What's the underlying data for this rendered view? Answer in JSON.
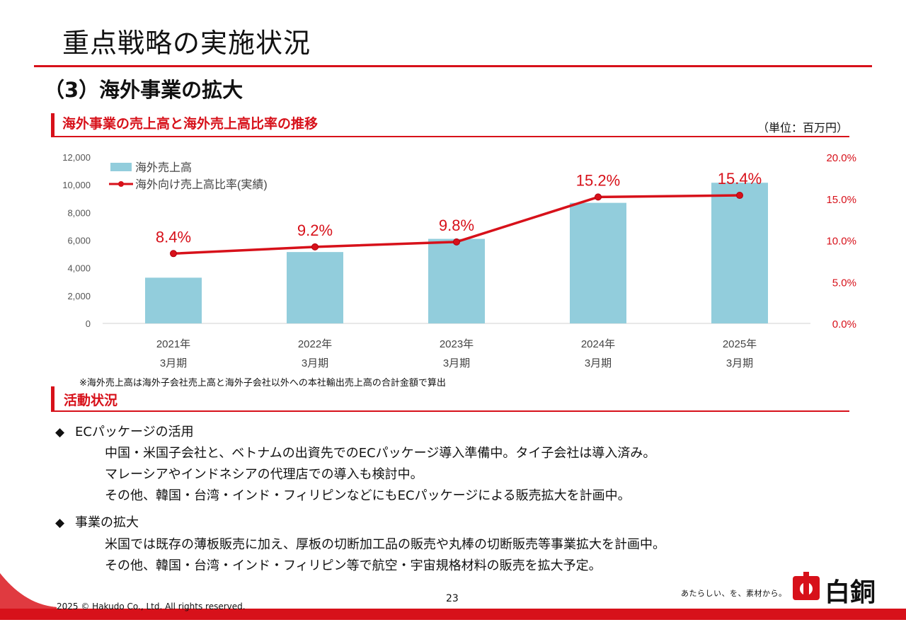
{
  "header": {
    "title": "重点戦略の実施状況",
    "section": "（3）海外事業の拡大"
  },
  "chart_section": {
    "title": "海外事業の売上高と海外売上高比率の推移",
    "unit": "（単位：百万円）",
    "footnote": "※海外売上高は海外子会社売上高と海外子会社以外への本社輸出売上高の合計金額で算出"
  },
  "chart_data": {
    "type": "bar",
    "categories": [
      {
        "year": "2021年",
        "period": "3月期"
      },
      {
        "year": "2022年",
        "period": "3月期"
      },
      {
        "year": "2023年",
        "period": "3月期"
      },
      {
        "year": "2024年",
        "period": "3月期"
      },
      {
        "year": "2025年",
        "period": "3月期"
      }
    ],
    "series": [
      {
        "name": "海外売上高",
        "type": "bar",
        "axis": "left",
        "values": [
          3300,
          5150,
          6100,
          8700,
          10150
        ],
        "color": "#92cddc"
      },
      {
        "name": "海外向け売上高比率(実績)",
        "type": "line",
        "axis": "right",
        "values": [
          8.4,
          9.2,
          9.8,
          15.2,
          15.4
        ],
        "labels": [
          "8.4%",
          "9.2%",
          "9.8%",
          "15.2%",
          "15.4%"
        ],
        "color": "#d7111a"
      }
    ],
    "y_left": {
      "min": 0,
      "max": 12000,
      "ticks": [
        "0",
        "2,000",
        "4,000",
        "6,000",
        "8,000",
        "10,000",
        "12,000"
      ]
    },
    "y_right": {
      "min": 0,
      "max": 20,
      "ticks": [
        "0.0%",
        "5.0%",
        "10.0%",
        "15.0%",
        "20.0%"
      ]
    },
    "legend": "top-left",
    "grid": false
  },
  "activity": {
    "title": "活動状況",
    "items": [
      {
        "heading": "ECパッケージの活用",
        "lines": [
          "中国・米国子会社と、ベトナムの出資先でのECパッケージ導入準備中。タイ子会社は導入済み。",
          "マレーシアやインドネシアの代理店での導入も検討中。",
          "その他、韓国・台湾・インド・フィリピンなどにもECパッケージによる販売拡大を計画中。"
        ]
      },
      {
        "heading": "事業の拡大",
        "lines": [
          "米国では既存の薄板販売に加え、厚板の切断加工品の販売や丸棒の切断販売等事業拡大を計画中。",
          "その他、韓国・台湾・インド・フィリピン等で航空・宇宙規格材料の販売を拡大予定。"
        ]
      }
    ]
  },
  "footer": {
    "copyright": "2025 © Hakudo Co., Ltd. All rights reserved.",
    "page_number": "23",
    "tagline": "あたらしい、を、素材から。",
    "logo_text": "白銅",
    "logo_mark": "hakudo-logo-icon"
  },
  "colors": {
    "accent": "#d7111a",
    "bar": "#92cddc"
  }
}
